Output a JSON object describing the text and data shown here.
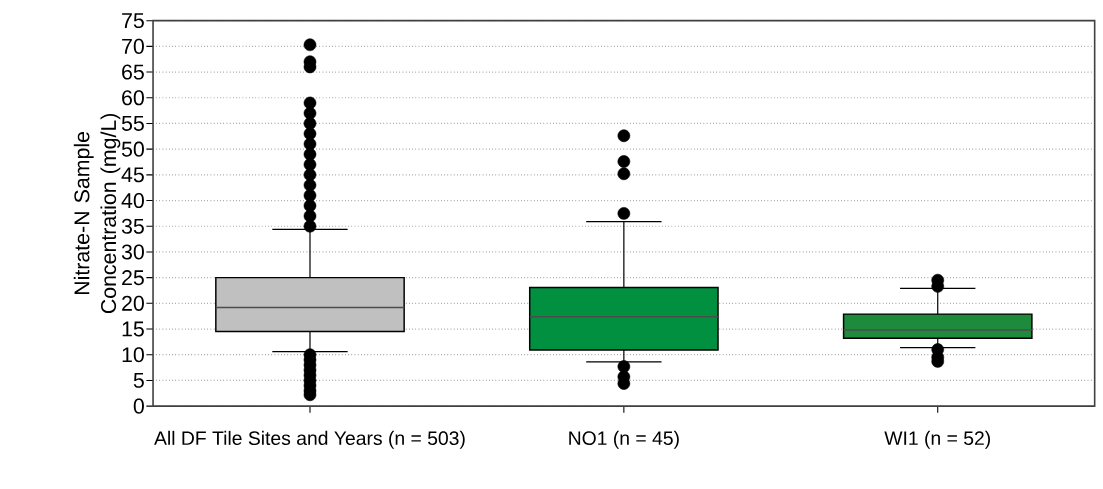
{
  "chart_data": {
    "type": "box",
    "ylabel": "Nitrate-N Sample Concentration (mg/L)",
    "categories": [
      "All DF Tile Sites and Years (n = 503)",
      "NO1 (n = 45)",
      "WI1 (n = 52)"
    ],
    "colors": [
      "#c0c0c0",
      "#009040",
      "#1d8a3c"
    ],
    "boxes": [
      {
        "low": 10.6,
        "q1": 14.5,
        "median": 19.2,
        "q3": 25,
        "high": 34.4,
        "outliers": [
          70.3,
          67,
          66,
          59,
          57,
          55,
          53,
          51,
          49,
          47,
          45,
          43,
          41,
          39,
          37,
          35,
          10,
          9,
          8,
          7,
          6,
          5,
          4,
          3,
          2.2
        ]
      },
      {
        "low": 8.6,
        "q1": 10.9,
        "median": 17.4,
        "q3": 23.1,
        "high": 35.9,
        "outliers": [
          52.6,
          47.6,
          45.2,
          37.5,
          7.7,
          5.7,
          4.4
        ]
      },
      {
        "low": 11.4,
        "q1": 13.2,
        "median": 14.8,
        "q3": 17.9,
        "high": 22.9,
        "outliers": [
          24.5,
          23.3,
          11.0,
          9.5,
          8.7
        ]
      }
    ],
    "ylim": [
      0,
      75
    ],
    "yticks": [
      0,
      5,
      10,
      15,
      20,
      25,
      30,
      35,
      40,
      45,
      50,
      55,
      60,
      65,
      70,
      75
    ],
    "grid": "y",
    "marker": "circle"
  }
}
